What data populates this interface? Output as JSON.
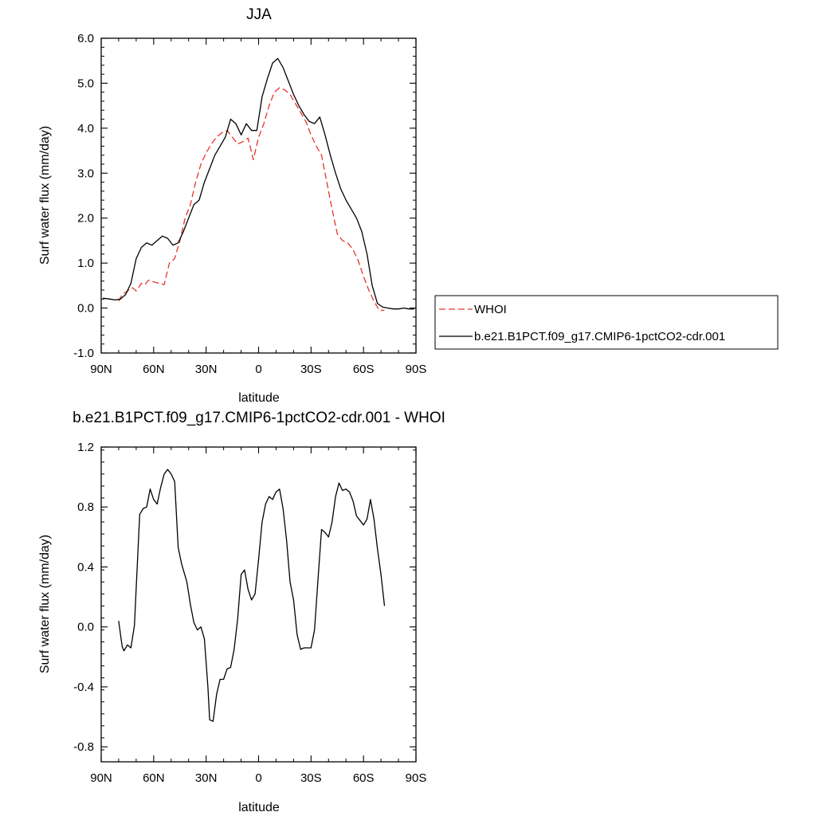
{
  "colors": {
    "whoi": "#e8332a",
    "model": "#000000"
  },
  "chart_data": [
    {
      "type": "line",
      "title": "JJA",
      "xlabel": "latitude",
      "ylabel": "Surf water flux (mm/day)",
      "xlim": [
        -90,
        90
      ],
      "ylim": [
        -1.0,
        6.0
      ],
      "x_ticks": [
        -90,
        -60,
        -30,
        0,
        30,
        60,
        90
      ],
      "x_tick_labels": [
        "90N",
        "60N",
        "30N",
        "0",
        "30S",
        "60S",
        "90S"
      ],
      "y_ticks": [
        -1,
        0,
        1,
        2,
        3,
        4,
        5,
        6
      ],
      "y_tick_labels": [
        "-1.0",
        "0.0",
        "1.0",
        "2.0",
        "3.0",
        "4.0",
        "5.0",
        "6.0"
      ],
      "grid": false,
      "legend_placement": "right",
      "series": [
        {
          "name": "WHOI",
          "style": "dashed",
          "x": [
            -80,
            -78,
            -75,
            -72,
            -70,
            -67,
            -65,
            -63,
            -60,
            -57,
            -54,
            -51,
            -48,
            -45,
            -42,
            -39,
            -36,
            -33,
            -30,
            -27,
            -24,
            -21,
            -18,
            -15,
            -12,
            -9,
            -6,
            -3,
            0,
            3,
            6,
            9,
            12,
            15,
            18,
            21,
            24,
            27,
            30,
            33,
            36,
            39,
            42,
            45,
            48,
            51,
            54,
            57,
            60,
            63,
            66,
            69,
            72
          ],
          "values": [
            0.15,
            0.3,
            0.38,
            0.45,
            0.38,
            0.55,
            0.52,
            0.62,
            0.58,
            0.55,
            0.52,
            1.0,
            1.1,
            1.5,
            2.0,
            2.3,
            2.8,
            3.2,
            3.45,
            3.65,
            3.8,
            3.9,
            3.95,
            3.8,
            3.65,
            3.7,
            3.78,
            3.3,
            3.8,
            4.1,
            4.5,
            4.8,
            4.9,
            4.85,
            4.75,
            4.55,
            4.35,
            4.15,
            3.85,
            3.6,
            3.4,
            2.8,
            2.2,
            1.65,
            1.5,
            1.45,
            1.3,
            1.05,
            0.7,
            0.4,
            0.15,
            -0.05,
            -0.05
          ]
        },
        {
          "name": "b.e21.B1PCT.f09_g17.CMIP6-1pctCO2-cdr.001",
          "style": "solid",
          "x": [
            -89,
            -85,
            -82,
            -79,
            -76,
            -73,
            -70,
            -67,
            -64,
            -61,
            -58,
            -55,
            -52,
            -49,
            -46,
            -43,
            -40,
            -37,
            -34,
            -31,
            -28,
            -25,
            -22,
            -19,
            -16,
            -13,
            -10,
            -7,
            -4,
            -1,
            2,
            5,
            8,
            11,
            14,
            17,
            20,
            23,
            26,
            29,
            32,
            35,
            38,
            41,
            44,
            47,
            50,
            53,
            56,
            59,
            62,
            65,
            68,
            71,
            74,
            77,
            80,
            83,
            86,
            89
          ],
          "values": [
            0.22,
            0.2,
            0.18,
            0.2,
            0.3,
            0.55,
            1.1,
            1.35,
            1.45,
            1.4,
            1.5,
            1.6,
            1.55,
            1.4,
            1.45,
            1.7,
            2.0,
            2.3,
            2.4,
            2.8,
            3.1,
            3.4,
            3.6,
            3.8,
            4.2,
            4.1,
            3.85,
            4.1,
            3.95,
            3.95,
            4.7,
            5.1,
            5.45,
            5.55,
            5.35,
            5.05,
            4.75,
            4.5,
            4.3,
            4.15,
            4.1,
            4.25,
            3.85,
            3.4,
            3.0,
            2.65,
            2.4,
            2.2,
            2.0,
            1.7,
            1.2,
            0.5,
            0.1,
            0.02,
            0.0,
            -0.02,
            -0.02,
            0.0,
            -0.02,
            -0.02
          ]
        }
      ]
    },
    {
      "type": "line",
      "title": "b.e21.B1PCT.f09_g17.CMIP6-1pctCO2-cdr.001 - WHOI",
      "xlabel": "latitude",
      "ylabel": "Surf water flux (mm/day)",
      "xlim": [
        -90,
        90
      ],
      "ylim": [
        -0.9,
        1.2
      ],
      "x_ticks": [
        -90,
        -60,
        -30,
        0,
        30,
        60,
        90
      ],
      "x_tick_labels": [
        "90N",
        "60N",
        "30N",
        "0",
        "30S",
        "60S",
        "90S"
      ],
      "y_ticks": [
        -0.8,
        -0.4,
        0.0,
        0.4,
        0.8,
        1.2
      ],
      "y_tick_labels": [
        "-0.8",
        "-0.4",
        "0.0",
        "0.4",
        "0.8",
        "1.2"
      ],
      "grid": false,
      "series": [
        {
          "style": "solid",
          "x": [
            -80,
            -78,
            -77,
            -75,
            -73,
            -71,
            -68,
            -66,
            -64,
            -62,
            -60,
            -58,
            -56,
            -54,
            -52,
            -50,
            -48,
            -46,
            -44,
            -41,
            -39,
            -37,
            -35,
            -33,
            -31,
            -29,
            -28,
            -26,
            -24,
            -22,
            -20,
            -18,
            -16,
            -14,
            -12,
            -10,
            -8,
            -6,
            -4,
            -2,
            0,
            2,
            4,
            6,
            8,
            10,
            12,
            14,
            16,
            18,
            20,
            22,
            24,
            26,
            28,
            30,
            32,
            34,
            36,
            38,
            40,
            42,
            44,
            46,
            48,
            50,
            52,
            54,
            56,
            58,
            60,
            62,
            64,
            66,
            68,
            70,
            72
          ],
          "values": [
            0.04,
            -0.13,
            -0.16,
            -0.12,
            -0.14,
            0.01,
            0.75,
            0.79,
            0.8,
            0.92,
            0.85,
            0.82,
            0.93,
            1.02,
            1.05,
            1.02,
            0.97,
            0.53,
            0.42,
            0.3,
            0.15,
            0.03,
            -0.02,
            0.0,
            -0.08,
            -0.4,
            -0.62,
            -0.63,
            -0.45,
            -0.35,
            -0.35,
            -0.28,
            -0.27,
            -0.15,
            0.05,
            0.35,
            0.38,
            0.25,
            0.18,
            0.22,
            0.45,
            0.7,
            0.82,
            0.87,
            0.85,
            0.9,
            0.92,
            0.79,
            0.58,
            0.3,
            0.18,
            -0.05,
            -0.15,
            -0.14,
            -0.14,
            -0.14,
            -0.02,
            0.32,
            0.65,
            0.63,
            0.6,
            0.7,
            0.87,
            0.96,
            0.91,
            0.92,
            0.9,
            0.84,
            0.74,
            0.71,
            0.68,
            0.72,
            0.85,
            0.72,
            0.52,
            0.35,
            0.14
          ]
        }
      ]
    }
  ]
}
